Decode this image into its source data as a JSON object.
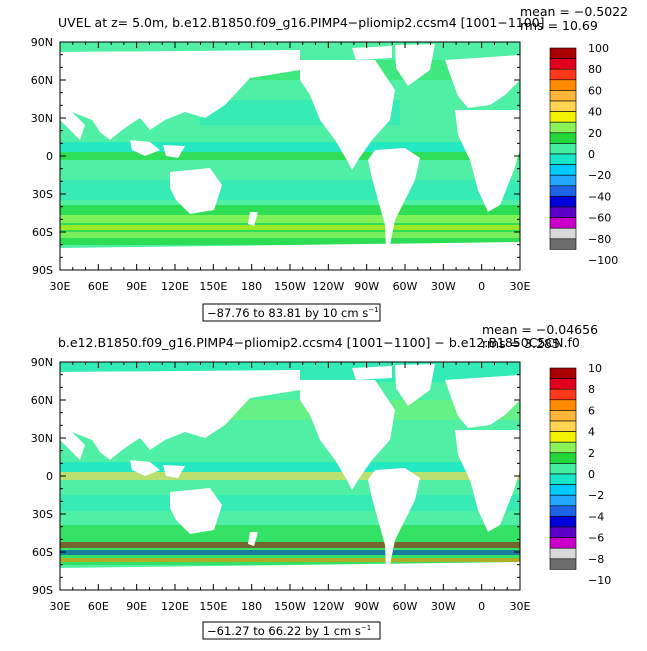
{
  "panels": [
    {
      "title": "UVEL at z=    5.0m, b.e12.B1850.f09_g16.PIMP4−pliomip2.ccsm4 [1001−1100]",
      "mean": "mean = −0.5022",
      "rms": "rms = 10.69",
      "range_text": "−87.76 to 83.81 by 10 cm s",
      "range_exp": "−1",
      "colorbar_labels": [
        "100",
        "80",
        "60",
        "40",
        "20",
        "0",
        "−20",
        "−40",
        "−60",
        "−80",
        "−100"
      ]
    },
    {
      "title": "b.e12.B1850.f09_g16.PIMP4−pliomip2.ccsm4 [1001−1100] − b.e12.B1850C5CN.f0",
      "mean": "mean = −0.04656",
      "rms": "rms = 3.285",
      "range_text": "−61.27 to 66.22 by 1 cm s",
      "range_exp": "−1",
      "colorbar_labels": [
        "10",
        "8",
        "6",
        "4",
        "2",
        "0",
        "−2",
        "−4",
        "−6",
        "−8",
        "−10"
      ]
    }
  ],
  "lat_labels": [
    "90N",
    "60N",
    "30N",
    "0",
    "30S",
    "60S",
    "90S"
  ],
  "lon_labels": [
    "30E",
    "60E",
    "90E",
    "120E",
    "150E",
    "180",
    "150W",
    "120W",
    "90W",
    "60W",
    "30W",
    "0",
    "30E"
  ],
  "colors": {
    "ocean": "#4ff0a5",
    "land": "#ffffff",
    "palette": [
      "#a80000",
      "#e0001c",
      "#ff3a1c",
      "#ff8a00",
      "#ffb43a",
      "#ffd54f",
      "#f3f300",
      "#8af35a",
      "#22d73a",
      "#44f0a0",
      "#18e6c8",
      "#00ccff",
      "#23a7ff",
      "#1e62e6",
      "#0000dd",
      "#5a00c6",
      "#c800c8",
      "#d9d9d9",
      "#6d6d6d"
    ]
  }
}
